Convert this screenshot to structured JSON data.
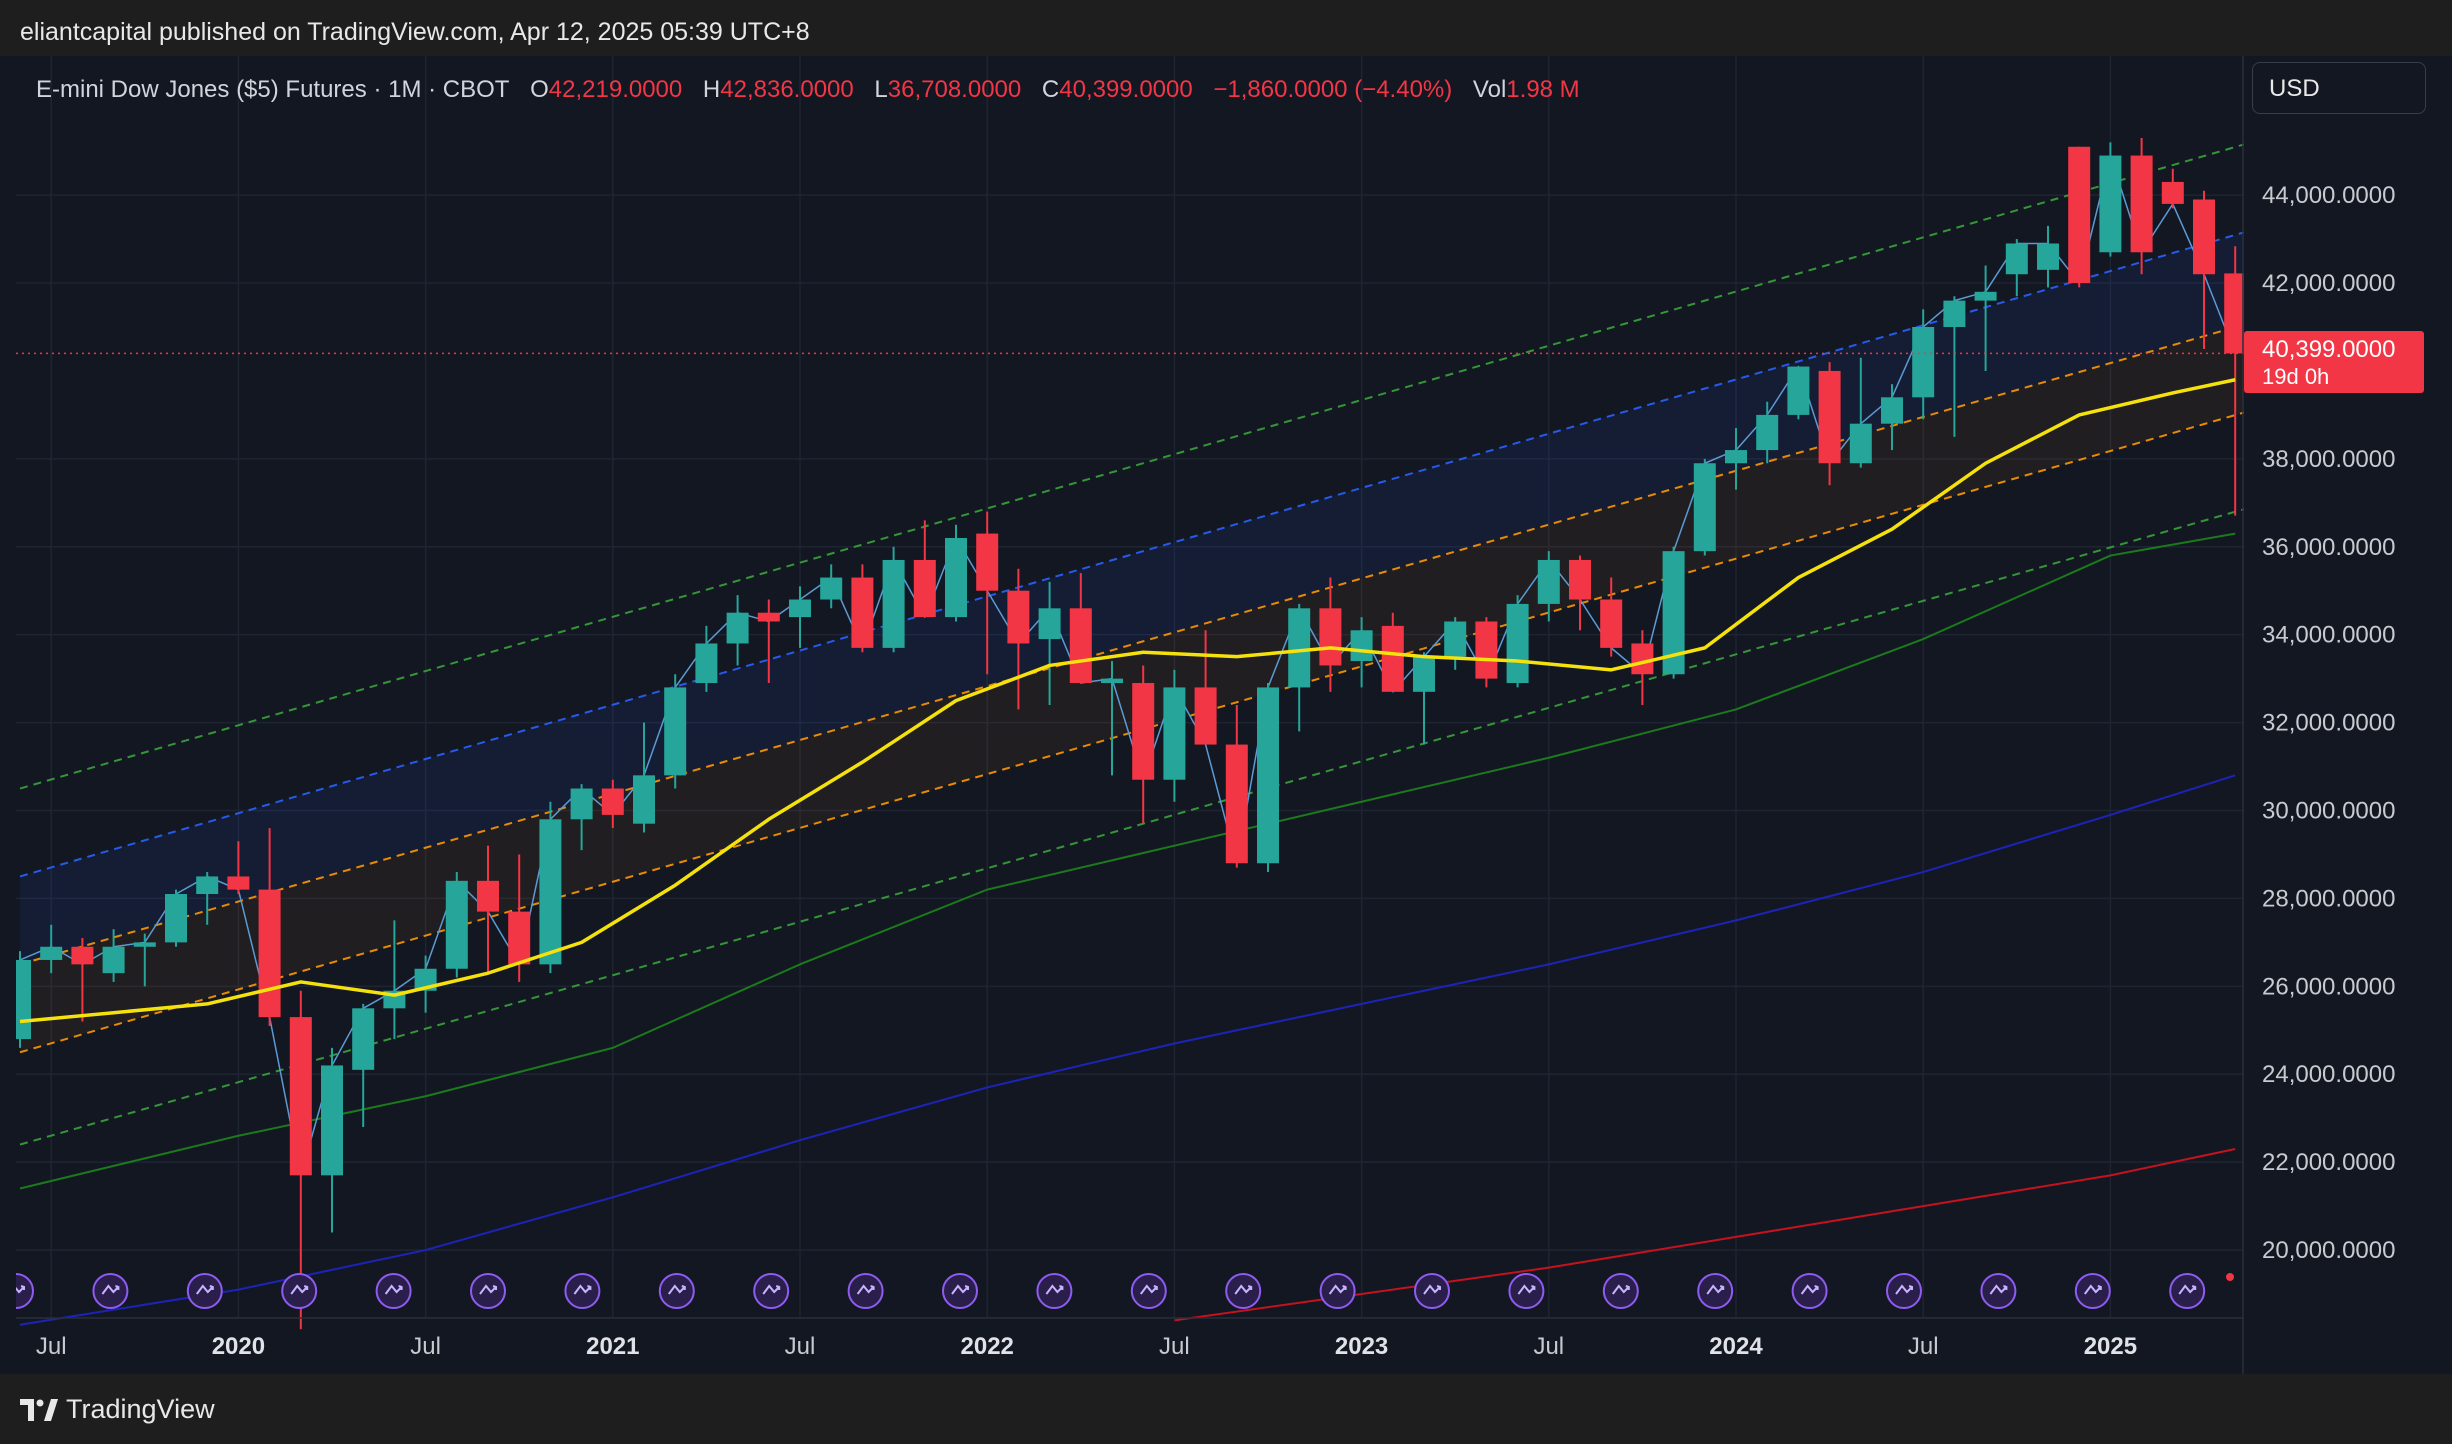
{
  "header": {
    "publisher_line": "eliantcapital published on TradingView.com, Apr 12, 2025 05:39 UTC+8"
  },
  "legend": {
    "symbol": "E-mini Dow Jones ($5) Futures · 1M · CBOT",
    "open_label": "O",
    "open": "42,219.0000",
    "high_label": "H",
    "high": "42,836.0000",
    "low_label": "L",
    "low": "36,708.0000",
    "close_label": "C",
    "close": "40,399.0000",
    "change": "−1,860.0000 (−4.40%)",
    "vol_label": "Vol",
    "vol": "1.98 M"
  },
  "currency": "USD",
  "price_tag": {
    "value": "40,399.0000",
    "countdown": "19d 0h"
  },
  "footer": {
    "brand": "TradingView"
  },
  "colors": {
    "up": "#26a69a",
    "down": "#f23645",
    "background": "#131722",
    "sma_fast": "#f5e10c",
    "sma_mid": "#1b7a1b",
    "sma_slow": "#1c24b8",
    "sma_long": "#c4121e"
  },
  "chart_data": {
    "type": "candlestick",
    "title": "E-mini Dow Jones ($5) Futures · 1M · CBOT",
    "y_range": [
      18500,
      45800
    ],
    "y_ticks": [
      "44,000.0000",
      "42,000.0000",
      "38,000.0000",
      "36,000.0000",
      "34,000.0000",
      "32,000.0000",
      "30,000.0000",
      "28,000.0000",
      "26,000.0000",
      "24,000.0000",
      "22,000.0000",
      "20,000.0000"
    ],
    "y_tick_values": [
      44000,
      42000,
      38000,
      36000,
      34000,
      32000,
      30000,
      28000,
      26000,
      24000,
      22000,
      20000
    ],
    "x_ticks": [
      {
        "label": "Jul",
        "month": "2019-07",
        "year": false
      },
      {
        "label": "2020",
        "month": "2020-01",
        "year": true
      },
      {
        "label": "Jul",
        "month": "2020-07",
        "year": false
      },
      {
        "label": "2021",
        "month": "2021-01",
        "year": true
      },
      {
        "label": "Jul",
        "month": "2021-07",
        "year": false
      },
      {
        "label": "2022",
        "month": "2022-01",
        "year": true
      },
      {
        "label": "Jul",
        "month": "2022-07",
        "year": false
      },
      {
        "label": "2023",
        "month": "2023-01",
        "year": true
      },
      {
        "label": "Jul",
        "month": "2023-07",
        "year": false
      },
      {
        "label": "2024",
        "month": "2024-01",
        "year": true
      },
      {
        "label": "Jul",
        "month": "2024-07",
        "year": false
      },
      {
        "label": "2025",
        "month": "2025-01",
        "year": true
      }
    ],
    "candles": [
      {
        "month": "2019-06",
        "o": 24800,
        "h": 26800,
        "l": 24600,
        "c": 26600
      },
      {
        "month": "2019-07",
        "o": 26600,
        "h": 27400,
        "l": 26300,
        "c": 26900
      },
      {
        "month": "2019-08",
        "o": 26900,
        "h": 27100,
        "l": 25200,
        "c": 26500
      },
      {
        "month": "2019-09",
        "o": 26300,
        "h": 27300,
        "l": 26100,
        "c": 26900
      },
      {
        "month": "2019-10",
        "o": 26900,
        "h": 27200,
        "l": 26000,
        "c": 27000
      },
      {
        "month": "2019-11",
        "o": 27000,
        "h": 28200,
        "l": 26900,
        "c": 28100
      },
      {
        "month": "2019-12",
        "o": 28100,
        "h": 28600,
        "l": 27400,
        "c": 28500
      },
      {
        "month": "2020-01",
        "o": 28500,
        "h": 29300,
        "l": 28100,
        "c": 28200
      },
      {
        "month": "2020-02",
        "o": 28200,
        "h": 29600,
        "l": 25100,
        "c": 25300
      },
      {
        "month": "2020-03",
        "o": 25300,
        "h": 25900,
        "l": 18200,
        "c": 21700
      },
      {
        "month": "2020-04",
        "o": 21700,
        "h": 24600,
        "l": 20400,
        "c": 24200
      },
      {
        "month": "2020-05",
        "o": 24100,
        "h": 25600,
        "l": 22800,
        "c": 25500
      },
      {
        "month": "2020-06",
        "o": 25500,
        "h": 27500,
        "l": 24800,
        "c": 25900
      },
      {
        "month": "2020-07",
        "o": 25900,
        "h": 26700,
        "l": 25400,
        "c": 26400
      },
      {
        "month": "2020-08",
        "o": 26400,
        "h": 28600,
        "l": 26200,
        "c": 28400
      },
      {
        "month": "2020-09",
        "o": 28400,
        "h": 29200,
        "l": 26300,
        "c": 27700
      },
      {
        "month": "2020-10",
        "o": 27700,
        "h": 29000,
        "l": 26100,
        "c": 26500
      },
      {
        "month": "2020-11",
        "o": 26500,
        "h": 30200,
        "l": 26300,
        "c": 29800
      },
      {
        "month": "2020-12",
        "o": 29800,
        "h": 30600,
        "l": 29100,
        "c": 30500
      },
      {
        "month": "2021-01",
        "o": 30500,
        "h": 30700,
        "l": 29600,
        "c": 29900
      },
      {
        "month": "2021-02",
        "o": 29700,
        "h": 32000,
        "l": 29500,
        "c": 30800
      },
      {
        "month": "2021-03",
        "o": 30800,
        "h": 33100,
        "l": 30500,
        "c": 32800
      },
      {
        "month": "2021-04",
        "o": 32900,
        "h": 34200,
        "l": 32700,
        "c": 33800
      },
      {
        "month": "2021-05",
        "o": 33800,
        "h": 34900,
        "l": 33300,
        "c": 34500
      },
      {
        "month": "2021-06",
        "o": 34500,
        "h": 34800,
        "l": 32900,
        "c": 34300
      },
      {
        "month": "2021-07",
        "o": 34400,
        "h": 35100,
        "l": 33700,
        "c": 34800
      },
      {
        "month": "2021-08",
        "o": 34800,
        "h": 35600,
        "l": 34600,
        "c": 35300
      },
      {
        "month": "2021-09",
        "o": 35300,
        "h": 35600,
        "l": 33600,
        "c": 33700
      },
      {
        "month": "2021-10",
        "o": 33700,
        "h": 36000,
        "l": 33600,
        "c": 35700
      },
      {
        "month": "2021-11",
        "o": 35700,
        "h": 36600,
        "l": 34400,
        "c": 34400
      },
      {
        "month": "2021-12",
        "o": 34400,
        "h": 36500,
        "l": 34300,
        "c": 36200
      },
      {
        "month": "2022-01",
        "o": 36300,
        "h": 36800,
        "l": 33100,
        "c": 35000
      },
      {
        "month": "2022-02",
        "o": 35000,
        "h": 35500,
        "l": 32300,
        "c": 33800
      },
      {
        "month": "2022-03",
        "o": 33900,
        "h": 35200,
        "l": 32400,
        "c": 34600
      },
      {
        "month": "2022-04",
        "o": 34600,
        "h": 35400,
        "l": 32900,
        "c": 32900
      },
      {
        "month": "2022-05",
        "o": 32900,
        "h": 33400,
        "l": 30800,
        "c": 33000
      },
      {
        "month": "2022-06",
        "o": 32900,
        "h": 33300,
        "l": 29700,
        "c": 30700
      },
      {
        "month": "2022-07",
        "o": 30700,
        "h": 33200,
        "l": 30200,
        "c": 32800
      },
      {
        "month": "2022-08",
        "o": 32800,
        "h": 34100,
        "l": 31500,
        "c": 31500
      },
      {
        "month": "2022-09",
        "o": 31500,
        "h": 32400,
        "l": 28700,
        "c": 28800
      },
      {
        "month": "2022-10",
        "o": 28800,
        "h": 32900,
        "l": 28600,
        "c": 32800
      },
      {
        "month": "2022-11",
        "o": 32800,
        "h": 34700,
        "l": 31800,
        "c": 34600
      },
      {
        "month": "2022-12",
        "o": 34600,
        "h": 35300,
        "l": 32700,
        "c": 33300
      },
      {
        "month": "2023-01",
        "o": 33400,
        "h": 34400,
        "l": 32800,
        "c": 34100
      },
      {
        "month": "2023-02",
        "o": 34200,
        "h": 34500,
        "l": 32700,
        "c": 32700
      },
      {
        "month": "2023-03",
        "o": 32700,
        "h": 33600,
        "l": 31500,
        "c": 33500
      },
      {
        "month": "2023-04",
        "o": 33500,
        "h": 34400,
        "l": 33200,
        "c": 34300
      },
      {
        "month": "2023-05",
        "o": 34300,
        "h": 34400,
        "l": 32800,
        "c": 33000
      },
      {
        "month": "2023-06",
        "o": 32900,
        "h": 34900,
        "l": 32800,
        "c": 34700
      },
      {
        "month": "2023-07",
        "o": 34700,
        "h": 35900,
        "l": 34300,
        "c": 35700
      },
      {
        "month": "2023-08",
        "o": 35700,
        "h": 35800,
        "l": 34100,
        "c": 34800
      },
      {
        "month": "2023-09",
        "o": 34800,
        "h": 35300,
        "l": 33500,
        "c": 33700
      },
      {
        "month": "2023-10",
        "o": 33800,
        "h": 34100,
        "l": 32400,
        "c": 33100
      },
      {
        "month": "2023-11",
        "o": 33100,
        "h": 36000,
        "l": 33000,
        "c": 35900
      },
      {
        "month": "2023-12",
        "o": 35900,
        "h": 38000,
        "l": 35800,
        "c": 37900
      },
      {
        "month": "2024-01",
        "o": 37900,
        "h": 38700,
        "l": 37300,
        "c": 38200
      },
      {
        "month": "2024-02",
        "o": 38200,
        "h": 39300,
        "l": 37900,
        "c": 39000
      },
      {
        "month": "2024-03",
        "o": 39000,
        "h": 40100,
        "l": 38900,
        "c": 40100
      },
      {
        "month": "2024-04",
        "o": 40000,
        "h": 40200,
        "l": 37400,
        "c": 37900
      },
      {
        "month": "2024-05",
        "o": 37900,
        "h": 40300,
        "l": 37800,
        "c": 38800
      },
      {
        "month": "2024-06",
        "o": 38800,
        "h": 39700,
        "l": 38200,
        "c": 39400
      },
      {
        "month": "2024-07",
        "o": 39400,
        "h": 41400,
        "l": 38900,
        "c": 41000
      },
      {
        "month": "2024-08",
        "o": 41000,
        "h": 41700,
        "l": 38500,
        "c": 41600
      },
      {
        "month": "2024-09",
        "o": 41600,
        "h": 42400,
        "l": 40000,
        "c": 41800
      },
      {
        "month": "2024-10",
        "o": 42200,
        "h": 43000,
        "l": 41700,
        "c": 42900
      },
      {
        "month": "2024-11",
        "o": 42300,
        "h": 43300,
        "l": 41900,
        "c": 42900
      },
      {
        "month": "2024-12",
        "o": 45100,
        "h": 45100,
        "l": 41900,
        "c": 42000
      },
      {
        "month": "2025-01",
        "o": 42700,
        "h": 45200,
        "l": 42600,
        "c": 44900
      },
      {
        "month": "2025-02",
        "o": 44900,
        "h": 45300,
        "l": 42200,
        "c": 42700
      },
      {
        "month": "2025-03",
        "o": 44300,
        "h": 44600,
        "l": 43700,
        "c": 43800
      },
      {
        "month": "2025-04",
        "o": 43900,
        "h": 44100,
        "l": 40500,
        "c": 42200
      },
      {
        "month": "2025-05",
        "o": 42219,
        "h": 42836,
        "l": 36708,
        "c": 40399
      }
    ],
    "current_price": 40399,
    "sma_fast": [
      [
        "2019-06",
        25200
      ],
      [
        "2019-09",
        25400
      ],
      [
        "2019-12",
        25600
      ],
      [
        "2020-03",
        26100
      ],
      [
        "2020-06",
        25800
      ],
      [
        "2020-09",
        26300
      ],
      [
        "2020-12",
        27000
      ],
      [
        "2021-03",
        28300
      ],
      [
        "2021-06",
        29800
      ],
      [
        "2021-09",
        31100
      ],
      [
        "2021-12",
        32500
      ],
      [
        "2022-03",
        33300
      ],
      [
        "2022-06",
        33600
      ],
      [
        "2022-09",
        33500
      ],
      [
        "2022-12",
        33700
      ],
      [
        "2023-03",
        33500
      ],
      [
        "2023-06",
        33400
      ],
      [
        "2023-09",
        33200
      ],
      [
        "2023-12",
        33700
      ],
      [
        "2024-03",
        35300
      ],
      [
        "2024-06",
        36400
      ],
      [
        "2024-09",
        37900
      ],
      [
        "2024-12",
        39000
      ],
      [
        "2025-03",
        39500
      ],
      [
        "2025-05",
        39800
      ]
    ],
    "sma_mid": [
      [
        "2019-06",
        21400
      ],
      [
        "2020-01",
        22600
      ],
      [
        "2020-07",
        23500
      ],
      [
        "2021-01",
        24600
      ],
      [
        "2021-07",
        26500
      ],
      [
        "2022-01",
        28200
      ],
      [
        "2022-07",
        29200
      ],
      [
        "2023-01",
        30200
      ],
      [
        "2023-07",
        31200
      ],
      [
        "2024-01",
        32300
      ],
      [
        "2024-07",
        33900
      ],
      [
        "2025-01",
        35800
      ],
      [
        "2025-05",
        36300
      ]
    ],
    "sma_slow": [
      [
        "2019-06",
        18300
      ],
      [
        "2020-01",
        19100
      ],
      [
        "2020-07",
        20000
      ],
      [
        "2021-01",
        21200
      ],
      [
        "2021-07",
        22500
      ],
      [
        "2022-01",
        23700
      ],
      [
        "2022-07",
        24700
      ],
      [
        "2023-01",
        25600
      ],
      [
        "2023-07",
        26500
      ],
      [
        "2024-01",
        27500
      ],
      [
        "2024-07",
        28600
      ],
      [
        "2025-01",
        29900
      ],
      [
        "2025-05",
        30800
      ]
    ],
    "sma_long": [
      [
        "2022-07",
        18400
      ],
      [
        "2023-01",
        19000
      ],
      [
        "2023-07",
        19600
      ],
      [
        "2024-01",
        20300
      ],
      [
        "2024-07",
        21000
      ],
      [
        "2025-01",
        21700
      ],
      [
        "2025-05",
        22300
      ]
    ],
    "channel_lines": [
      {
        "color": "#37a53a",
        "dash": true,
        "start": [
          "2019-06",
          30500
        ],
        "end": [
          "2025-06",
          45300
        ]
      },
      {
        "color": "#2962ff",
        "dash": true,
        "start": [
          "2019-06",
          28500
        ],
        "end": [
          "2025-06",
          43300
        ]
      },
      {
        "color": "#ff9800",
        "dash": true,
        "start": [
          "2019-06",
          26500
        ],
        "end": [
          "2025-06",
          41200
        ]
      },
      {
        "color": "#ff9800",
        "dash": true,
        "start": [
          "2019-06",
          24500
        ],
        "end": [
          "2025-06",
          39200
        ]
      },
      {
        "color": "#37a53a",
        "dash": true,
        "start": [
          "2019-06",
          22400
        ],
        "end": [
          "2025-06",
          37000
        ]
      }
    ],
    "event_markers_count": 24
  }
}
